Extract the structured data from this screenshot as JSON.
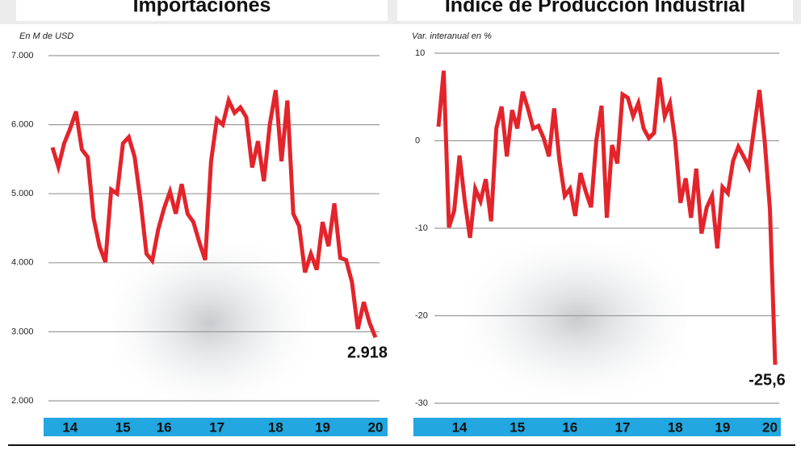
{
  "chart_data": [
    {
      "type": "line",
      "title": "Importaciones",
      "y_axis_label": "En M de USD",
      "categories": [
        null,
        null,
        null,
        "14",
        null,
        null,
        null,
        null,
        null,
        null,
        null,
        null,
        "15",
        null,
        null,
        null,
        null,
        null,
        null,
        "16",
        null,
        null,
        null,
        null,
        null,
        null,
        null,
        null,
        "17",
        null,
        null,
        null,
        null,
        null,
        null,
        null,
        null,
        null,
        "18",
        null,
        null,
        null,
        null,
        null,
        null,
        null,
        "19",
        null,
        null,
        null,
        null,
        null,
        null,
        null,
        null,
        "20"
      ],
      "series": [
        {
          "name": "Importaciones",
          "color": "#e3242b",
          "values": [
            5670,
            5390,
            5730,
            5940,
            6190,
            5640,
            5530,
            4650,
            4240,
            4010,
            5060,
            5000,
            5730,
            5820,
            5530,
            4890,
            4130,
            4030,
            4480,
            4790,
            5030,
            4710,
            5140,
            4710,
            4590,
            4300,
            4040,
            5470,
            6080,
            6000,
            6350,
            6170,
            6250,
            6110,
            5380,
            5760,
            5180,
            6000,
            6500,
            5470,
            6350,
            4710,
            4530,
            3860,
            4130,
            3900,
            4590,
            4240,
            4860,
            4070,
            4040,
            3720,
            3040,
            3430,
            3130,
            2918
          ],
          "value_labels": [
            null,
            null,
            null,
            null,
            null,
            null,
            null,
            null,
            null,
            null,
            null,
            null,
            null,
            null,
            null,
            null,
            null,
            null,
            null,
            null,
            null,
            null,
            null,
            null,
            null,
            null,
            null,
            null,
            null,
            null,
            null,
            null,
            null,
            null,
            null,
            null,
            null,
            null,
            null,
            null,
            null,
            null,
            null,
            null,
            null,
            null,
            null,
            null,
            null,
            null,
            null,
            null,
            null,
            null,
            null,
            "2.918"
          ]
        }
      ],
      "ylim": [
        2000,
        7000
      ],
      "yticks": [
        {
          "value": 2000,
          "label": "2.000"
        },
        {
          "value": 3000,
          "label": "3.000"
        },
        {
          "value": 4000,
          "label": "4.000"
        },
        {
          "value": 5000,
          "label": "5.000"
        },
        {
          "value": 6000,
          "label": "6.000"
        },
        {
          "value": 7000,
          "label": "7.000"
        }
      ],
      "grid": true
    },
    {
      "type": "line",
      "title": "Índice de Producción Industrial",
      "y_axis_label": "Var. interanual en %",
      "categories": [
        null,
        null,
        null,
        null,
        "14",
        null,
        null,
        null,
        null,
        null,
        null,
        null,
        null,
        null,
        null,
        "15",
        null,
        null,
        null,
        null,
        null,
        null,
        null,
        null,
        null,
        "16",
        null,
        null,
        null,
        null,
        null,
        null,
        null,
        null,
        null,
        "17",
        null,
        null,
        null,
        null,
        null,
        null,
        null,
        null,
        null,
        "18",
        null,
        null,
        null,
        null,
        null,
        null,
        null,
        null,
        "19",
        null,
        null,
        null,
        null,
        null,
        null,
        null,
        null,
        "20",
        null
      ],
      "series": [
        {
          "name": "Índice de Producción Industrial",
          "color": "#e3242b",
          "values": [
            1.6,
            8.0,
            -9.9,
            -8.0,
            -1.7,
            -6.9,
            -11.1,
            -5.5,
            -6.9,
            -4.4,
            -9.2,
            1.4,
            3.9,
            -1.8,
            3.5,
            1.4,
            5.6,
            3.7,
            1.4,
            1.7,
            0.3,
            -1.8,
            3.7,
            -2.3,
            -6.3,
            -5.5,
            -8.6,
            -3.7,
            -5.8,
            -7.6,
            0,
            4.0,
            -8.8,
            -0.5,
            -2.6,
            5.3,
            4.9,
            2.8,
            4.3,
            1.4,
            0.3,
            0.9,
            7.2,
            2.8,
            4.3,
            0,
            -7.1,
            -4.3,
            -8.8,
            -3.2,
            -10.6,
            -7.6,
            -6.3,
            -12.3,
            -5.3,
            -6.0,
            -2.3,
            -0.7,
            -1.8,
            -3.0,
            1.4,
            5.8,
            0,
            -7.8,
            -25.6
          ],
          "value_labels": [
            null,
            null,
            null,
            null,
            null,
            null,
            null,
            null,
            null,
            null,
            null,
            null,
            null,
            null,
            null,
            null,
            null,
            null,
            null,
            null,
            null,
            null,
            null,
            null,
            null,
            null,
            null,
            null,
            null,
            null,
            null,
            null,
            null,
            null,
            null,
            null,
            null,
            null,
            null,
            null,
            null,
            null,
            null,
            null,
            null,
            null,
            null,
            null,
            null,
            null,
            null,
            null,
            null,
            null,
            null,
            null,
            null,
            null,
            null,
            null,
            null,
            null,
            null,
            null,
            "-25,6"
          ]
        }
      ],
      "ylim": [
        -30,
        10
      ],
      "yticks": [
        -30,
        -20,
        -10,
        0,
        10
      ],
      "grid": true
    }
  ]
}
